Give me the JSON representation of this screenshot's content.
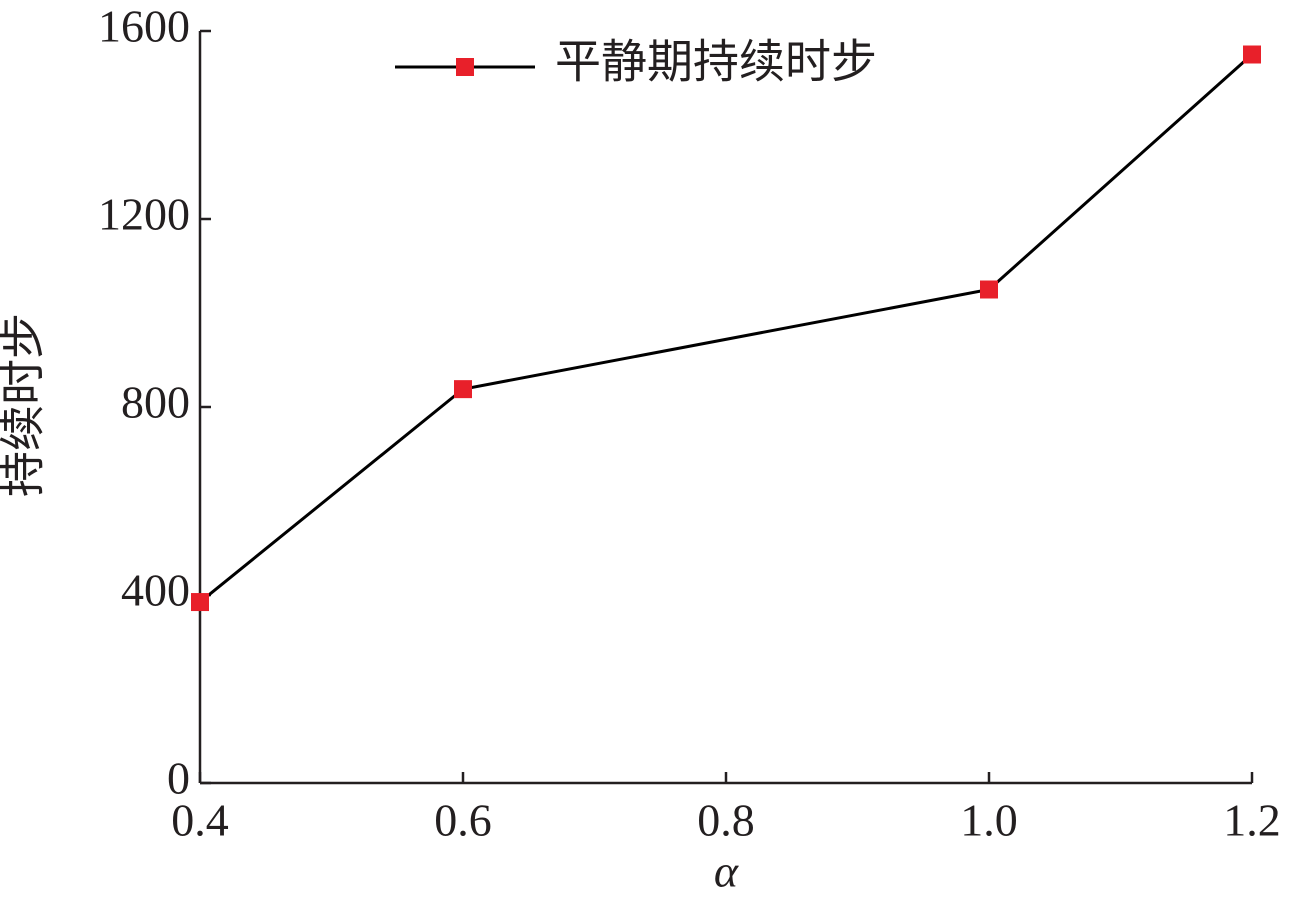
{
  "chart_data": {
    "type": "line",
    "x_label": "α",
    "y_label": "持续时步",
    "x": [
      0.4,
      0.6,
      1.0,
      1.2
    ],
    "series": [
      {
        "name": "平静期持续时步",
        "color": "#e8202a",
        "line_color": "#000000",
        "marker": "square",
        "values": [
          385,
          838,
          1050,
          1550
        ]
      }
    ],
    "xlim": [
      0.4,
      1.2
    ],
    "xticks": [
      0.4,
      0.6,
      0.8,
      {
        "value": 1,
        "label": "1.0"
      },
      1.2
    ],
    "ylim": [
      0,
      1600
    ],
    "yticks": [
      0,
      400,
      800,
      1200,
      1600
    ],
    "grid": false,
    "legend": "upper center"
  }
}
